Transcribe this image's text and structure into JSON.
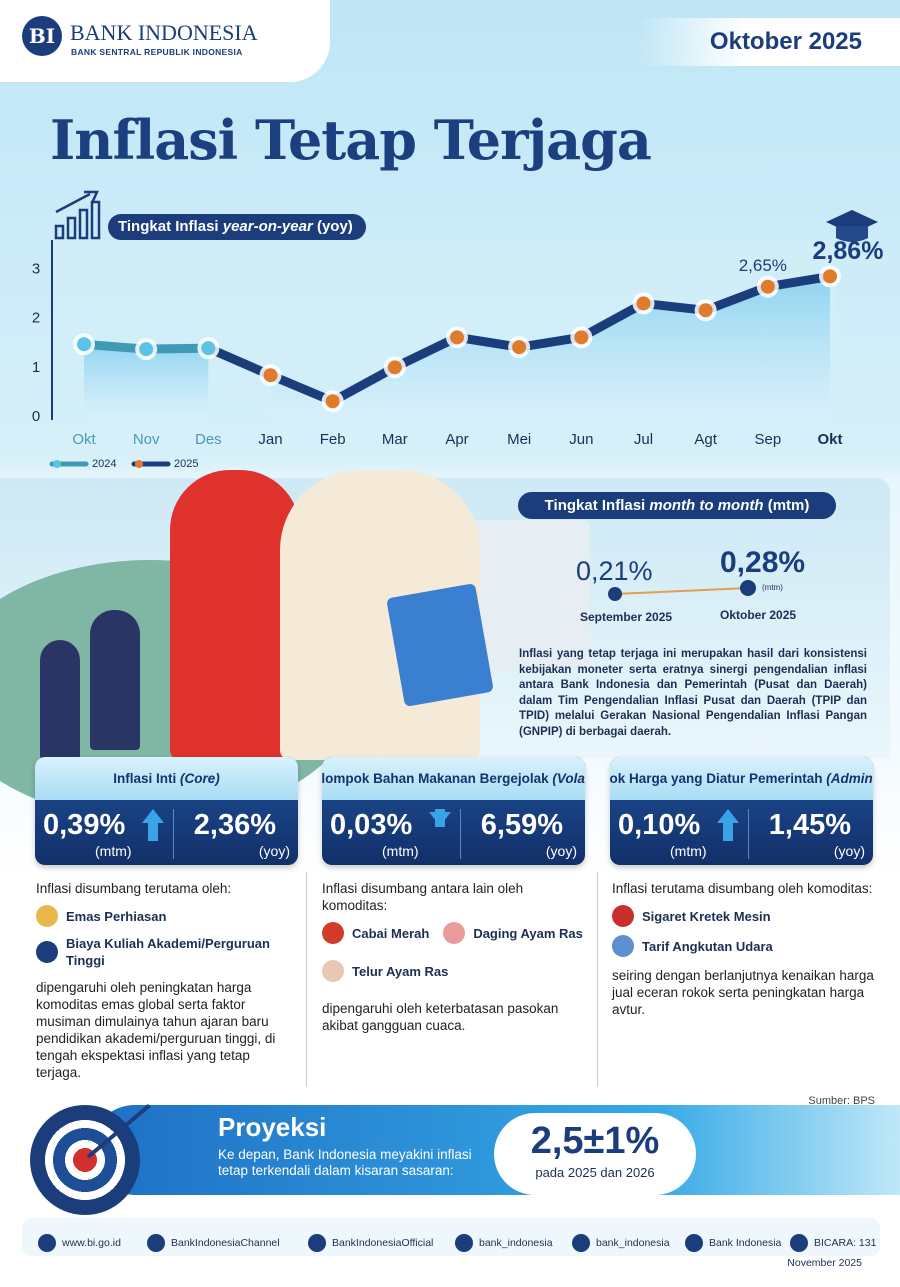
{
  "header": {
    "logo_name": "BANK INDONESIA",
    "logo_sub": "BANK SENTRAL REPUBLIK INDONESIA",
    "period": "Oktober 2025"
  },
  "title": "Inflasi Tetap Terjaga",
  "chart_data": {
    "type": "line",
    "title_parts": [
      "Tingkat Inflasi ",
      "year-on-year",
      " (yoy)"
    ],
    "categories": [
      "Okt",
      "Nov",
      "Des",
      "Jan",
      "Feb",
      "Mar",
      "Apr",
      "Mei",
      "Jun",
      "Jul",
      "Agt",
      "Sep",
      "Okt"
    ],
    "series": [
      {
        "name": "2024",
        "color": "#3f9bb5",
        "marker": "#5cc3e6",
        "values": [
          1.48,
          1.38,
          1.4,
          null,
          null,
          null,
          null,
          null,
          null,
          null,
          null,
          null,
          null
        ]
      },
      {
        "name": "2025",
        "color": "#1b3d7c",
        "marker": "#e07b2c",
        "values": [
          null,
          null,
          null,
          0.85,
          0.32,
          1.01,
          1.62,
          1.42,
          1.62,
          2.31,
          2.17,
          2.65,
          2.86
        ],
        "value_labels": [
          null,
          null,
          null,
          null,
          null,
          null,
          null,
          null,
          null,
          null,
          null,
          "2,65%",
          "2,86%"
        ]
      }
    ],
    "ylim": [
      0,
      3.6
    ],
    "yticks": [
      0,
      1,
      2,
      3
    ],
    "grid": false
  },
  "mtm": {
    "title_parts": [
      "Tingkat Inflasi ",
      "month to month",
      " (mtm)"
    ],
    "sep_value": "0,21%",
    "sep_label": "September 2025",
    "okt_value": "0,28%",
    "okt_unit": "(mtm)",
    "okt_label": "Oktober 2025",
    "description": "Inflasi yang tetap terjaga ini merupakan hasil dari konsistensi kebijakan moneter serta eratnya sinergi pengendalian inflasi antara Bank Indonesia dan Pemerintah (Pusat dan Daerah) dalam Tim Pengendalian Inflasi Pusat dan Daerah (TPIP dan TPID) melalui Gerakan Nasional Pengendalian Inflasi Pangan (GNPIP) di berbagai daerah."
  },
  "boxes": [
    {
      "title_parts": [
        "Inflasi Inti ",
        "(Core)"
      ],
      "mtm": "0,39%",
      "mtm_unit": "(mtm)",
      "yoy": "2,36%",
      "yoy_unit": "(yoy)",
      "intro": "Inflasi disumbang terutama oleh:",
      "items": [
        "Emas Perhiasan",
        "Biaya Kuliah Akademi/Perguruan Tinggi"
      ],
      "outro": "dipengaruhi oleh peningkatan harga komoditas emas global serta faktor musiman dimulainya tahun ajaran baru pendidikan akademi/perguruan tinggi, di tengah ekspektasi inflasi yang tetap terjaga."
    },
    {
      "title_parts": [
        "Inflasi Kelompok Bahan Makanan Bergejolak ",
        "(Volatile Food)"
      ],
      "mtm": "0,03%",
      "mtm_unit": "(mtm)",
      "yoy": "6,59%",
      "yoy_unit": "(yoy)",
      "intro": "Inflasi disumbang antara lain oleh komoditas:",
      "items": [
        "Cabai Merah",
        "Daging Ayam Ras",
        "Telur Ayam Ras"
      ],
      "outro": "dipengaruhi oleh keterbatasan pasokan akibat gangguan cuaca."
    },
    {
      "title_parts": [
        "Inflasi Kelompok Harga yang Diatur Pemerintah ",
        "(Administered Prices)"
      ],
      "mtm": "0,10%",
      "mtm_unit": "(mtm)",
      "yoy": "1,45%",
      "yoy_unit": "(yoy)",
      "intro": "Inflasi terutama disumbang oleh komoditas:",
      "items": [
        "Sigaret Kretek Mesin",
        "Tarif Angkutan Udara"
      ],
      "outro": "seiring dengan berlanjutnya kenaikan harga jual eceran rokok serta peningkatan harga avtur."
    }
  ],
  "source": "Sumber: BPS",
  "proyeksi": {
    "title": "Proyeksi",
    "text": "Ke depan, Bank Indonesia meyakini inflasi tetap terkendali dalam kisaran sasaran:",
    "value": "2,5±1%",
    "note": "pada 2025 dan 2026"
  },
  "footer": {
    "links": [
      "www.bi.go.id",
      "BankIndonesiaChannel",
      "BankIndonesiaOfficial",
      "bank_indonesia",
      "bank_indonesia",
      "Bank Indonesia",
      "BICARA: 131"
    ],
    "date": "November 2025"
  }
}
